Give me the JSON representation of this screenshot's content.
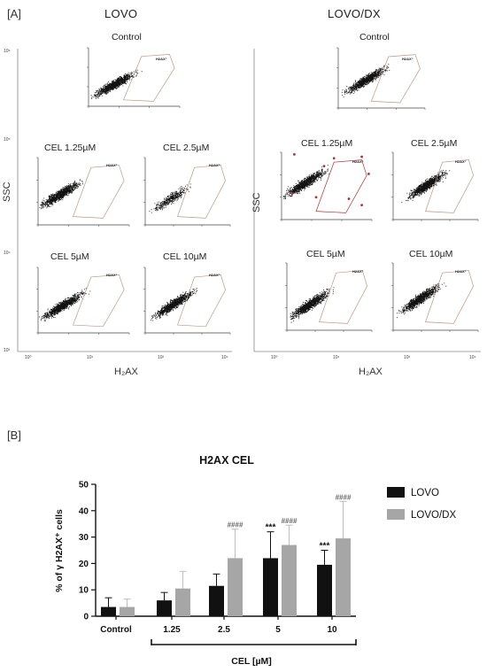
{
  "panel_a": {
    "label": "[A]",
    "groups": [
      {
        "title": "LOVO",
        "x_axis_label": "H₂AX",
        "y_axis_label": "SSC",
        "outer_y_ticks": [
          "10⁶",
          "10⁵",
          "10⁴",
          "10³"
        ],
        "outer_x_ticks": [
          "10⁰",
          "10¹",
          "10²",
          "10⁴"
        ],
        "plots": [
          {
            "title": "Control",
            "gate_label": "H2AX⁺"
          },
          {
            "title": "CEL 1.25µM",
            "gate_label": "H2AX⁺"
          },
          {
            "title": "CEL 2.5µM",
            "gate_label": "H2AX⁺"
          },
          {
            "title": "CEL 5µM",
            "gate_label": "H2AX⁺"
          },
          {
            "title": "CEL 10µM",
            "gate_label": "H2AX⁺"
          }
        ]
      },
      {
        "title": "LOVO/DX",
        "x_axis_label": "H₂AX",
        "y_axis_label": "SSC",
        "outer_x_ticks": [
          "10⁰",
          "10¹",
          "10²",
          "10⁴"
        ],
        "plots": [
          {
            "title": "Control",
            "gate_label": "H2AX⁺"
          },
          {
            "title": "CEL 1.25µM",
            "gate_label": "H2AX⁺"
          },
          {
            "title": "CEL 2.5µM",
            "gate_label": "H2AX⁺"
          },
          {
            "title": "CEL 5µM",
            "gate_label": "H2AX⁺"
          },
          {
            "title": "CEL 10µM",
            "gate_label": "H2AX⁺"
          }
        ]
      }
    ]
  },
  "panel_b": {
    "label": "[B]"
  },
  "chart_data": {
    "type": "bar",
    "title": "H2AX CEL",
    "ylabel": "% of γ H2AX⁺ cells",
    "xlabel": "CEL [µM]",
    "categories": [
      "Control",
      "1.25",
      "2.5",
      "5",
      "10"
    ],
    "ylim": [
      0,
      50
    ],
    "yticks": [
      0,
      10,
      20,
      30,
      40,
      50
    ],
    "legend_position": "right",
    "series": [
      {
        "name": "LOVO",
        "color": "#111111",
        "values": [
          3.5,
          6,
          11.5,
          22,
          19.5
        ],
        "errors": [
          3.5,
          3,
          4.5,
          10,
          5.5
        ],
        "annotations": [
          "",
          "",
          "",
          "***",
          "***"
        ]
      },
      {
        "name": "LOVO/DX",
        "color": "#a6a6a6",
        "values": [
          3.5,
          10.5,
          22,
          27,
          29.5
        ],
        "errors": [
          3,
          6.5,
          11,
          7.5,
          14
        ],
        "annotations": [
          "",
          "",
          "####",
          "####",
          "####"
        ]
      }
    ]
  }
}
